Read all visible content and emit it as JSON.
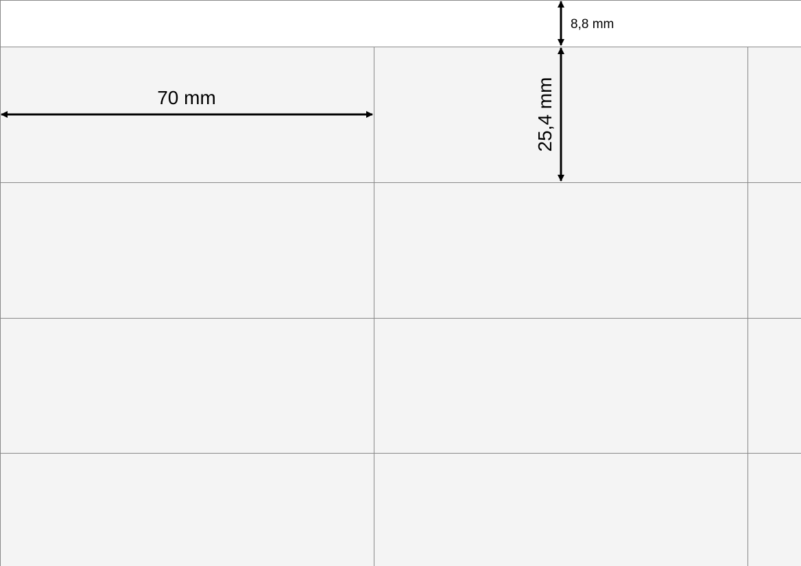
{
  "sheet": {
    "label_fill": "#f4f4f4",
    "border_color": "#888888",
    "rows_visible": 4,
    "columns_visible": 3
  },
  "dimensions": {
    "top_margin": "8,8 mm",
    "label_width": "70 mm",
    "label_height": "25,4 mm"
  }
}
